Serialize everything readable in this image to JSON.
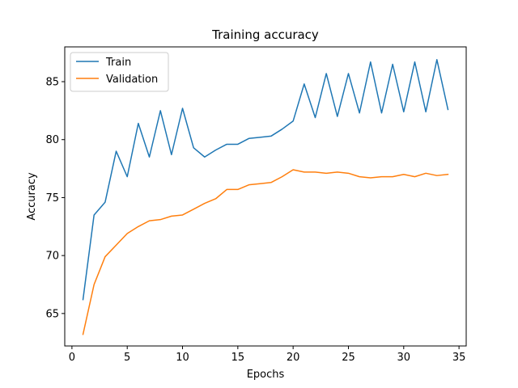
{
  "chart_data": {
    "type": "line",
    "title": "Training accuracy",
    "xlabel": "Epochs",
    "ylabel": "Accuracy",
    "xlim": [
      -0.65,
      35.65
    ],
    "ylim": [
      62.2,
      88.0
    ],
    "xticks": [
      0,
      5,
      10,
      15,
      20,
      25,
      30,
      35
    ],
    "yticks": [
      65,
      70,
      75,
      80,
      85
    ],
    "grid": false,
    "legend_position": "upper-left",
    "x": [
      1,
      2,
      3,
      4,
      5,
      6,
      7,
      8,
      9,
      10,
      11,
      12,
      13,
      14,
      15,
      16,
      17,
      18,
      19,
      20,
      21,
      22,
      23,
      24,
      25,
      26,
      27,
      28,
      29,
      30,
      31,
      32,
      33,
      34
    ],
    "series": [
      {
        "name": "Train",
        "color": "#1f77b4",
        "values": [
          66.2,
          73.5,
          74.6,
          79.0,
          76.8,
          81.4,
          78.5,
          82.5,
          78.7,
          82.7,
          79.3,
          78.5,
          79.1,
          79.6,
          79.6,
          80.1,
          80.2,
          80.3,
          80.9,
          81.6,
          84.8,
          81.9,
          85.7,
          82.0,
          85.7,
          82.3,
          86.7,
          82.3,
          86.5,
          82.4,
          86.7,
          82.4,
          86.9,
          82.6
        ]
      },
      {
        "name": "Validation",
        "color": "#ff7f0e",
        "values": [
          63.2,
          67.5,
          69.9,
          70.9,
          71.9,
          72.5,
          73.0,
          73.1,
          73.4,
          73.5,
          74.0,
          74.5,
          74.9,
          75.7,
          75.7,
          76.1,
          76.2,
          76.3,
          76.8,
          77.4,
          77.2,
          77.2,
          77.1,
          77.2,
          77.1,
          76.8,
          76.7,
          76.8,
          76.8,
          77.0,
          76.8,
          77.1,
          76.9,
          77.0
        ]
      }
    ]
  }
}
